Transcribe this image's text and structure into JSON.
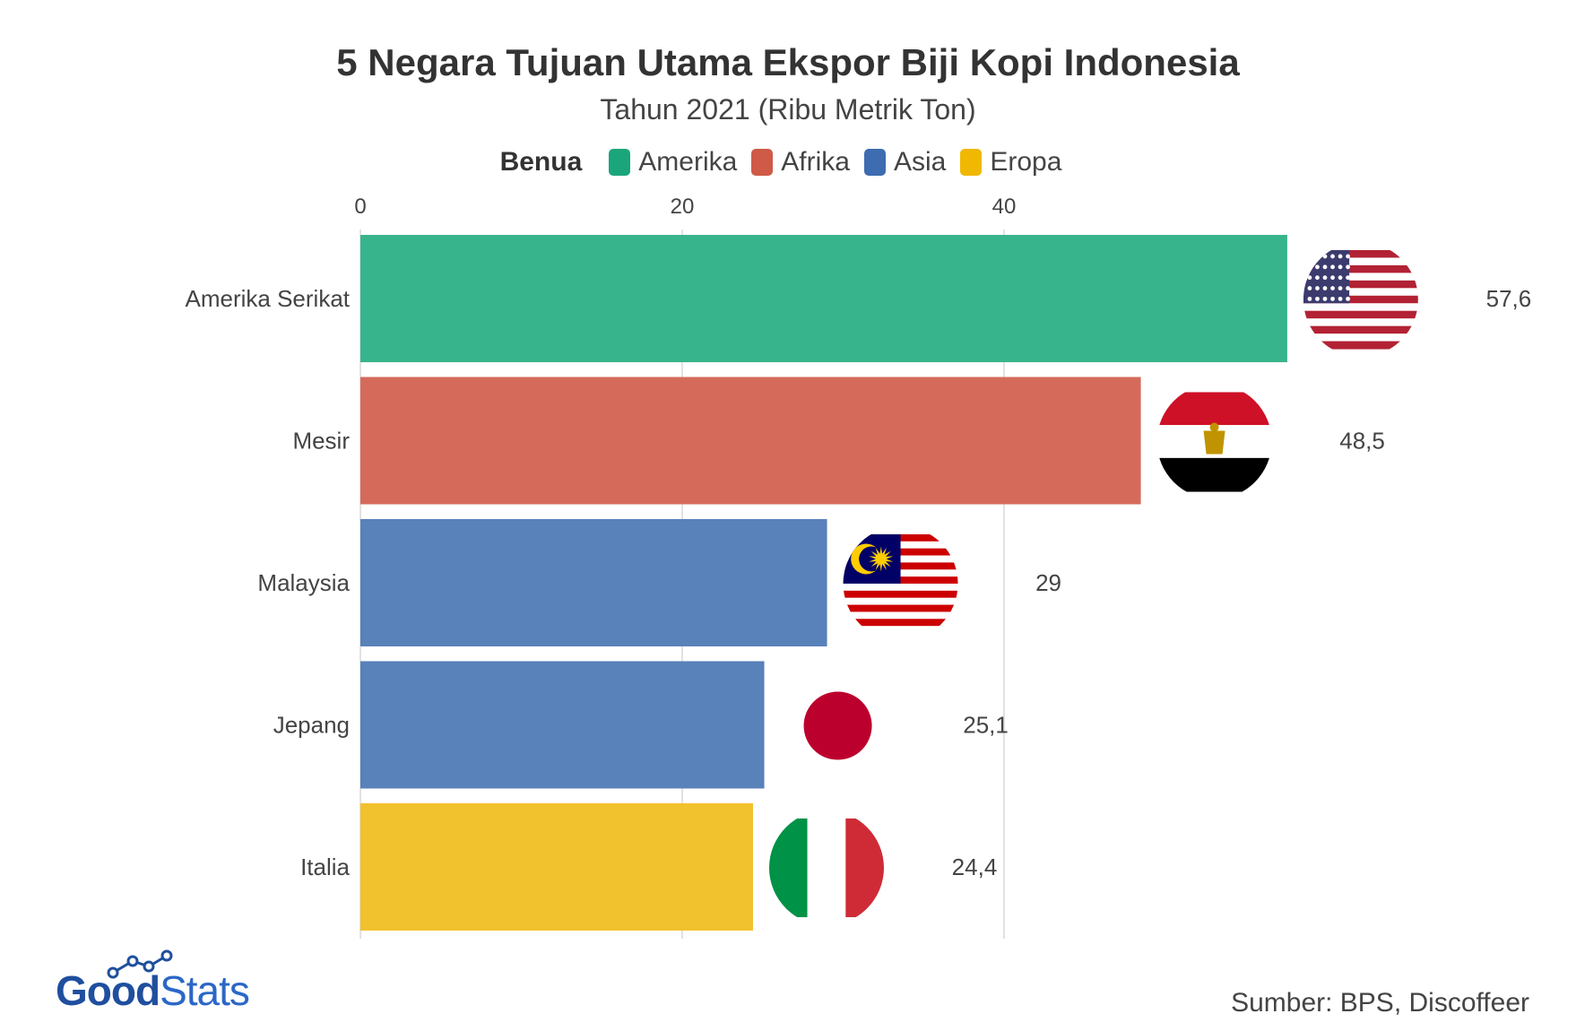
{
  "chart_data": {
    "type": "bar",
    "orientation": "horizontal",
    "title": "5 Negara Tujuan Utama Ekspor Biji Kopi Indonesia",
    "subtitle": "Tahun 2021 (Ribu Metrik Ton)",
    "legend_title": "Benua",
    "legend": [
      {
        "name": "Amerika",
        "color": "#1aa67a"
      },
      {
        "name": "Afrika",
        "color": "#cf5a47"
      },
      {
        "name": "Asia",
        "color": "#3d6cb0"
      },
      {
        "name": "Eropa",
        "color": "#f0b800"
      }
    ],
    "legend_placement": "top-center",
    "categories": [
      "Amerika Serikat",
      "Mesir",
      "Malaysia",
      "Jepang",
      "Italia"
    ],
    "values": [
      57.6,
      48.5,
      29,
      25.1,
      24.4
    ],
    "value_labels": [
      "57,6",
      "48,5",
      "29",
      "25,1",
      "24,4"
    ],
    "continent": [
      "Amerika",
      "Afrika",
      "Asia",
      "Asia",
      "Eropa"
    ],
    "bar_colors": [
      "#38b48d",
      "#d56a5b",
      "#5981ba",
      "#5981ba",
      "#f2c12e"
    ],
    "flag_icons": [
      "usa-flag-icon",
      "egypt-flag-icon",
      "malaysia-flag-icon",
      "japan-flag-icon",
      "italy-flag-icon"
    ],
    "x_ticks": [
      0,
      20,
      40
    ],
    "x_tick_labels": [
      "0",
      "20",
      "40"
    ],
    "xlim": [
      0,
      60
    ],
    "xaxis_position": "top",
    "grid": true
  },
  "footer": {
    "logo_good": "Good",
    "logo_stats": "Stats",
    "source": "Sumber: BPS, Discoffeer"
  }
}
